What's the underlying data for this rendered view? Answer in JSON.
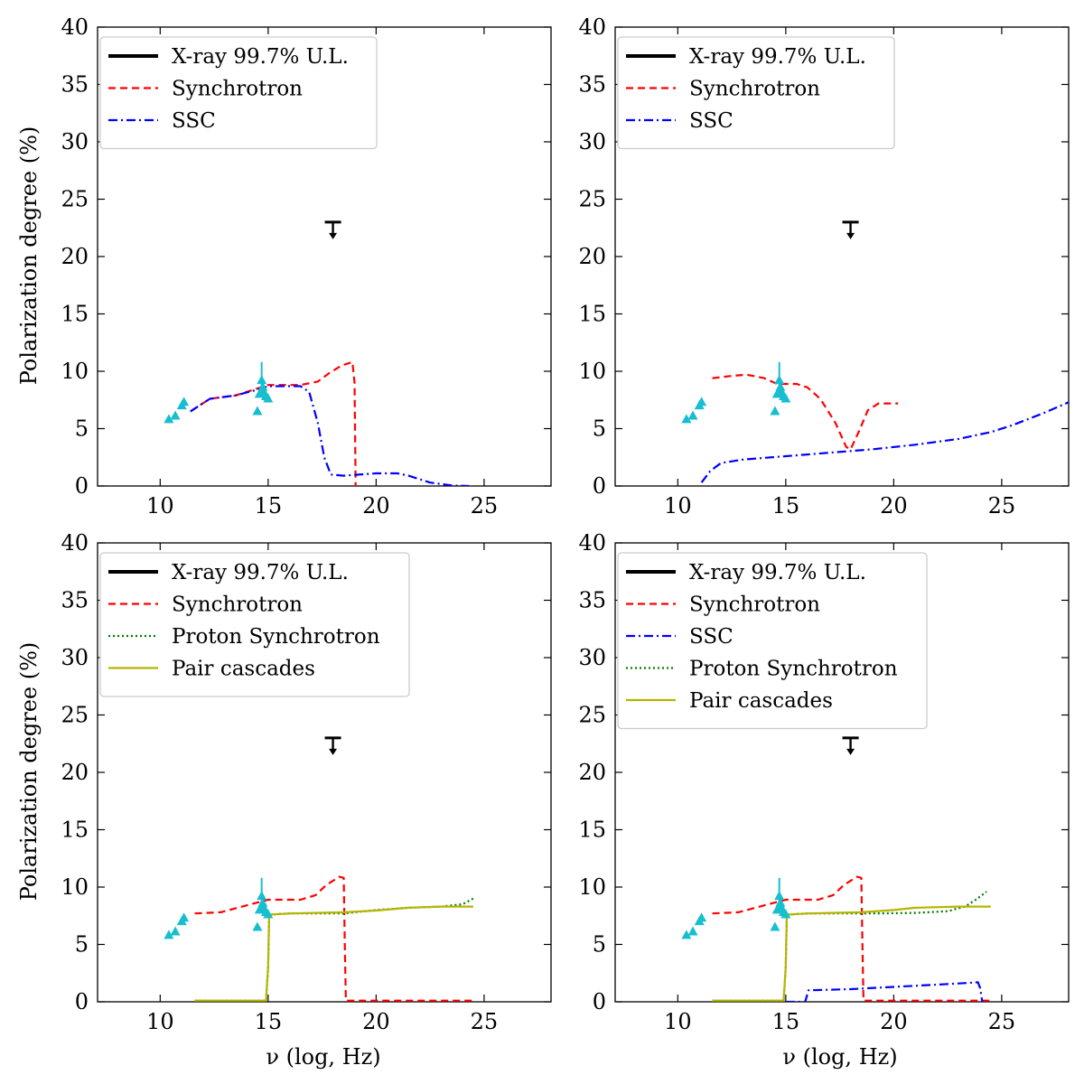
{
  "figure": {
    "ylabel": "Polarization degree (%)",
    "xlabel": "ν (log, Hz)"
  },
  "chart_data": [
    {
      "type": "line",
      "xlim": [
        7.1,
        28.1
      ],
      "ylim": [
        0,
        40
      ],
      "xticks": [
        10,
        15,
        20,
        25
      ],
      "yticks": [
        0,
        5,
        10,
        15,
        20,
        25,
        30,
        35,
        40
      ],
      "grid": false,
      "legend_position": "top-left",
      "legend": [
        "X-ray 99.7% U.L.",
        "Synchrotron",
        "SSC"
      ],
      "upper_limit": {
        "name": "X-ray 99.7% U.L.",
        "x": 18.0,
        "y": 23.0,
        "color": "#000000"
      },
      "observations": {
        "color": "#17becf",
        "points": [
          [
            10.4,
            5.8
          ],
          [
            10.7,
            6.1
          ],
          [
            11.0,
            7.0
          ],
          [
            11.1,
            7.3
          ],
          [
            14.5,
            6.5
          ],
          [
            14.6,
            8.0
          ],
          [
            14.7,
            9.2
          ],
          [
            14.75,
            8.6
          ],
          [
            14.8,
            8.2
          ],
          [
            14.9,
            7.8
          ],
          [
            15.0,
            7.6
          ]
        ],
        "errorbar": {
          "x": 14.7,
          "low": 7.8,
          "high": 10.8
        }
      },
      "series": [
        {
          "name": "Synchrotron",
          "color": "#ff0000",
          "dash": "8,5",
          "points": [
            [
              11.4,
              6.5
            ],
            [
              12.3,
              7.6
            ],
            [
              13.5,
              7.9
            ],
            [
              14.5,
              8.5
            ],
            [
              15.0,
              8.8
            ],
            [
              15.5,
              8.8
            ],
            [
              16.5,
              8.8
            ],
            [
              17.3,
              9.1
            ],
            [
              17.8,
              9.8
            ],
            [
              18.4,
              10.5
            ],
            [
              18.9,
              10.8
            ],
            [
              19.0,
              9.0
            ],
            [
              19.05,
              0
            ]
          ]
        },
        {
          "name": "SSC",
          "color": "#0000ff",
          "dash": "10,4,2,4",
          "points": [
            [
              11.4,
              6.5
            ],
            [
              12.3,
              7.6
            ],
            [
              13.5,
              7.9
            ],
            [
              14.5,
              8.4
            ],
            [
              15.0,
              8.7
            ],
            [
              16.5,
              8.7
            ],
            [
              16.9,
              8.2
            ],
            [
              17.3,
              5.5
            ],
            [
              17.6,
              2.5
            ],
            [
              17.9,
              1.0
            ],
            [
              18.5,
              0.9
            ],
            [
              20.0,
              1.1
            ],
            [
              21.0,
              1.1
            ],
            [
              21.5,
              0.9
            ],
            [
              22.5,
              0.3
            ],
            [
              23.5,
              0.05
            ],
            [
              24.3,
              0.0
            ]
          ]
        }
      ]
    },
    {
      "type": "line",
      "xlim": [
        7.1,
        28.1
      ],
      "ylim": [
        0,
        40
      ],
      "xticks": [
        10,
        15,
        20,
        25
      ],
      "yticks": [
        0,
        5,
        10,
        15,
        20,
        25,
        30,
        35,
        40
      ],
      "grid": false,
      "legend_position": "top-left",
      "legend": [
        "X-ray 99.7% U.L.",
        "Synchrotron",
        "SSC"
      ],
      "upper_limit": {
        "name": "X-ray 99.7% U.L.",
        "x": 18.0,
        "y": 23.0,
        "color": "#000000"
      },
      "observations": {
        "color": "#17becf",
        "points": [
          [
            10.4,
            5.8
          ],
          [
            10.7,
            6.1
          ],
          [
            11.0,
            7.0
          ],
          [
            11.1,
            7.3
          ],
          [
            14.5,
            6.5
          ],
          [
            14.6,
            8.0
          ],
          [
            14.7,
            9.2
          ],
          [
            14.75,
            8.6
          ],
          [
            14.8,
            8.2
          ],
          [
            14.9,
            7.8
          ],
          [
            15.0,
            7.6
          ]
        ],
        "errorbar": {
          "x": 14.7,
          "low": 7.8,
          "high": 10.8
        }
      },
      "series": [
        {
          "name": "Synchrotron",
          "color": "#ff0000",
          "dash": "8,5",
          "points": [
            [
              11.6,
              9.4
            ],
            [
              12.5,
              9.6
            ],
            [
              13.2,
              9.7
            ],
            [
              14.0,
              9.4
            ],
            [
              14.6,
              8.9
            ],
            [
              15.5,
              8.9
            ],
            [
              16.0,
              8.6
            ],
            [
              16.6,
              7.6
            ],
            [
              17.3,
              5.5
            ],
            [
              17.8,
              3.4
            ],
            [
              18.0,
              3.2
            ],
            [
              18.4,
              4.8
            ],
            [
              18.8,
              6.6
            ],
            [
              19.3,
              7.2
            ],
            [
              20.2,
              7.2
            ]
          ]
        },
        {
          "name": "SSC",
          "color": "#0000ff",
          "dash": "10,4,2,4",
          "points": [
            [
              11.1,
              0.3
            ],
            [
              11.5,
              1.3
            ],
            [
              12.0,
              2.0
            ],
            [
              13.0,
              2.3
            ],
            [
              15.0,
              2.6
            ],
            [
              17.0,
              2.9
            ],
            [
              19.0,
              3.2
            ],
            [
              21.0,
              3.6
            ],
            [
              23.0,
              4.1
            ],
            [
              24.5,
              4.7
            ],
            [
              25.5,
              5.3
            ],
            [
              27.0,
              6.4
            ],
            [
              28.1,
              7.3
            ]
          ]
        }
      ]
    },
    {
      "type": "line",
      "xlim": [
        7.1,
        28.1
      ],
      "ylim": [
        0,
        40
      ],
      "xticks": [
        10,
        15,
        20,
        25
      ],
      "yticks": [
        0,
        5,
        10,
        15,
        20,
        25,
        30,
        35,
        40
      ],
      "grid": false,
      "legend_position": "top-left",
      "legend": [
        "X-ray 99.7% U.L.",
        "Synchrotron",
        "Proton Synchrotron",
        "Pair cascades"
      ],
      "upper_limit": {
        "name": "X-ray 99.7% U.L.",
        "x": 18.0,
        "y": 23.0,
        "color": "#000000"
      },
      "observations": {
        "color": "#17becf",
        "points": [
          [
            10.4,
            5.8
          ],
          [
            10.7,
            6.1
          ],
          [
            11.0,
            7.0
          ],
          [
            11.1,
            7.3
          ],
          [
            14.5,
            6.5
          ],
          [
            14.6,
            8.0
          ],
          [
            14.7,
            9.2
          ],
          [
            14.75,
            8.6
          ],
          [
            14.8,
            8.2
          ],
          [
            14.9,
            7.8
          ],
          [
            15.0,
            7.6
          ]
        ],
        "errorbar": {
          "x": 14.7,
          "low": 7.8,
          "high": 10.8
        }
      },
      "series": [
        {
          "name": "Synchrotron",
          "color": "#ff0000",
          "dash": "8,5",
          "points": [
            [
              11.6,
              7.7
            ],
            [
              12.8,
              7.8
            ],
            [
              14.0,
              8.4
            ],
            [
              15.0,
              8.9
            ],
            [
              16.5,
              8.9
            ],
            [
              17.2,
              9.3
            ],
            [
              17.7,
              10.2
            ],
            [
              18.3,
              10.9
            ],
            [
              18.5,
              10.8
            ],
            [
              18.55,
              5.0
            ],
            [
              18.6,
              0.1
            ],
            [
              24.5,
              0.1
            ]
          ]
        },
        {
          "name": "Proton Synchrotron",
          "color": "#007a00",
          "dash": "2,3",
          "points": [
            [
              11.6,
              0.1
            ],
            [
              14.9,
              0.1
            ],
            [
              15.0,
              3.0
            ],
            [
              15.05,
              7.6
            ],
            [
              16.0,
              7.7
            ],
            [
              18.5,
              7.7
            ],
            [
              20.0,
              8.0
            ],
            [
              21.5,
              8.2
            ],
            [
              23.0,
              8.3
            ],
            [
              24.0,
              8.5
            ],
            [
              24.5,
              9.0
            ]
          ]
        },
        {
          "name": "Pair cascades",
          "color": "#b5b500",
          "dash": "",
          "points": [
            [
              11.6,
              0.1
            ],
            [
              14.9,
              0.1
            ],
            [
              15.0,
              3.0
            ],
            [
              15.05,
              7.6
            ],
            [
              16.0,
              7.7
            ],
            [
              18.5,
              7.8
            ],
            [
              20.0,
              7.95
            ],
            [
              21.5,
              8.2
            ],
            [
              23.0,
              8.3
            ],
            [
              24.5,
              8.3
            ]
          ]
        }
      ]
    },
    {
      "type": "line",
      "xlim": [
        7.1,
        28.1
      ],
      "ylim": [
        0,
        40
      ],
      "xticks": [
        10,
        15,
        20,
        25
      ],
      "yticks": [
        0,
        5,
        10,
        15,
        20,
        25,
        30,
        35,
        40
      ],
      "grid": false,
      "legend_position": "top-left",
      "legend": [
        "X-ray 99.7% U.L.",
        "Synchrotron",
        "SSC",
        "Proton Synchrotron",
        "Pair cascades"
      ],
      "upper_limit": {
        "name": "X-ray 99.7% U.L.",
        "x": 18.0,
        "y": 23.0,
        "color": "#000000"
      },
      "observations": {
        "color": "#17becf",
        "points": [
          [
            10.4,
            5.8
          ],
          [
            10.7,
            6.1
          ],
          [
            11.0,
            7.0
          ],
          [
            11.1,
            7.3
          ],
          [
            14.5,
            6.5
          ],
          [
            14.6,
            8.0
          ],
          [
            14.7,
            9.2
          ],
          [
            14.75,
            8.6
          ],
          [
            14.8,
            8.2
          ],
          [
            14.9,
            7.8
          ],
          [
            15.0,
            7.6
          ]
        ],
        "errorbar": {
          "x": 14.7,
          "low": 7.8,
          "high": 10.8
        }
      },
      "series": [
        {
          "name": "Synchrotron",
          "color": "#ff0000",
          "dash": "8,5",
          "points": [
            [
              11.6,
              7.7
            ],
            [
              12.8,
              7.8
            ],
            [
              14.0,
              8.4
            ],
            [
              15.0,
              8.9
            ],
            [
              16.5,
              8.9
            ],
            [
              17.2,
              9.3
            ],
            [
              17.7,
              10.2
            ],
            [
              18.3,
              10.9
            ],
            [
              18.5,
              10.8
            ],
            [
              18.55,
              5.0
            ],
            [
              18.6,
              0.1
            ],
            [
              24.5,
              0.1
            ]
          ]
        },
        {
          "name": "SSC",
          "color": "#0000ff",
          "dash": "10,4,2,4",
          "points": [
            [
              15.0,
              0.0
            ],
            [
              15.9,
              0.0
            ],
            [
              16.05,
              1.0
            ],
            [
              18.0,
              1.1
            ],
            [
              20.0,
              1.3
            ],
            [
              22.0,
              1.5
            ],
            [
              23.0,
              1.6
            ],
            [
              23.9,
              1.7
            ],
            [
              24.0,
              1.2
            ],
            [
              24.1,
              0.0
            ]
          ]
        },
        {
          "name": "Proton Synchrotron",
          "color": "#007a00",
          "dash": "2,3",
          "points": [
            [
              11.6,
              0.1
            ],
            [
              14.9,
              0.1
            ],
            [
              15.0,
              3.0
            ],
            [
              15.05,
              7.6
            ],
            [
              16.0,
              7.7
            ],
            [
              19.0,
              7.7
            ],
            [
              21.0,
              7.75
            ],
            [
              22.5,
              7.9
            ],
            [
              23.3,
              8.3
            ],
            [
              23.8,
              8.9
            ],
            [
              24.3,
              9.6
            ]
          ]
        },
        {
          "name": "Pair cascades",
          "color": "#b5b500",
          "dash": "",
          "points": [
            [
              11.6,
              0.1
            ],
            [
              14.9,
              0.1
            ],
            [
              15.0,
              3.0
            ],
            [
              15.05,
              7.6
            ],
            [
              16.0,
              7.7
            ],
            [
              18.5,
              7.8
            ],
            [
              20.0,
              8.0
            ],
            [
              21.0,
              8.2
            ],
            [
              23.0,
              8.3
            ],
            [
              24.5,
              8.3
            ]
          ]
        }
      ]
    }
  ]
}
